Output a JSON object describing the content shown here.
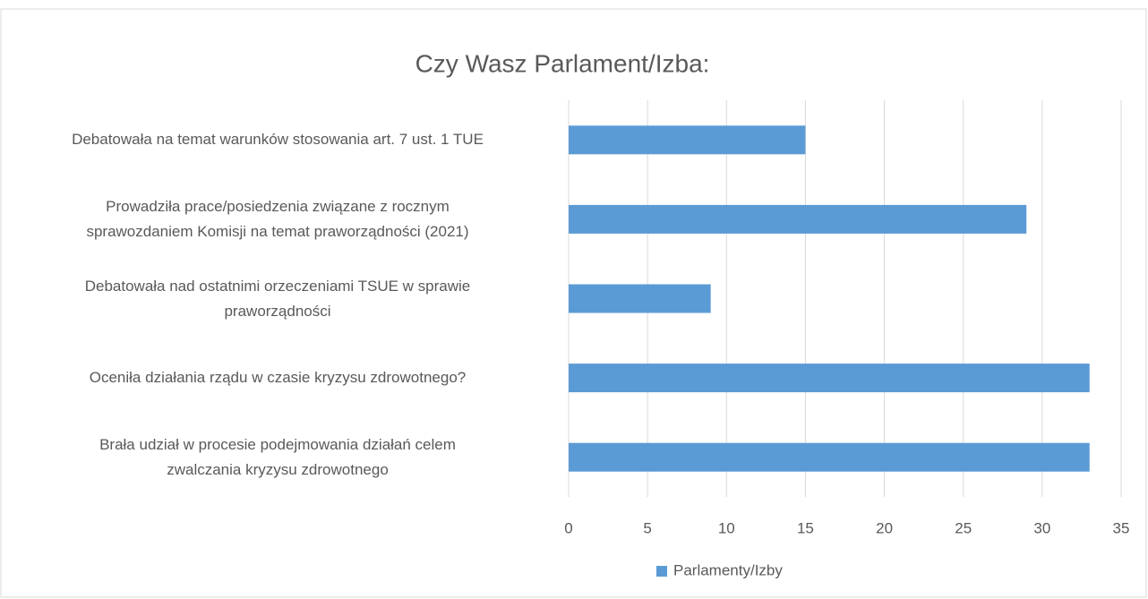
{
  "chart_data": {
    "type": "bar",
    "orientation": "horizontal",
    "title": "Czy Wasz Parlament/Izba:",
    "categories": [
      "Debatowała na temat warunków stosowania art. 7 ust. 1 TUE",
      "Prowadziła prace/posiedzenia związane z rocznym\nsprawozdaniem Komisji na temat praworządności (2021)",
      "Debatowała nad ostatnimi orzeczeniami TSUE w sprawie\npraworządności",
      "Oceniła działania rządu w czasie kryzysu zdrowotnego?",
      "Brała udział w procesie podejmowania działań celem\nzwalczania kryzysu zdrowotnego"
    ],
    "series": [
      {
        "name": "Parlamenty/Izby",
        "color": "#5b9bd5",
        "values": [
          15,
          29,
          9,
          33,
          33
        ]
      }
    ],
    "xlim": [
      0,
      35
    ],
    "xticks": [
      0,
      5,
      10,
      15,
      20,
      25,
      30,
      35
    ],
    "grid": true,
    "legend": "bottom"
  }
}
